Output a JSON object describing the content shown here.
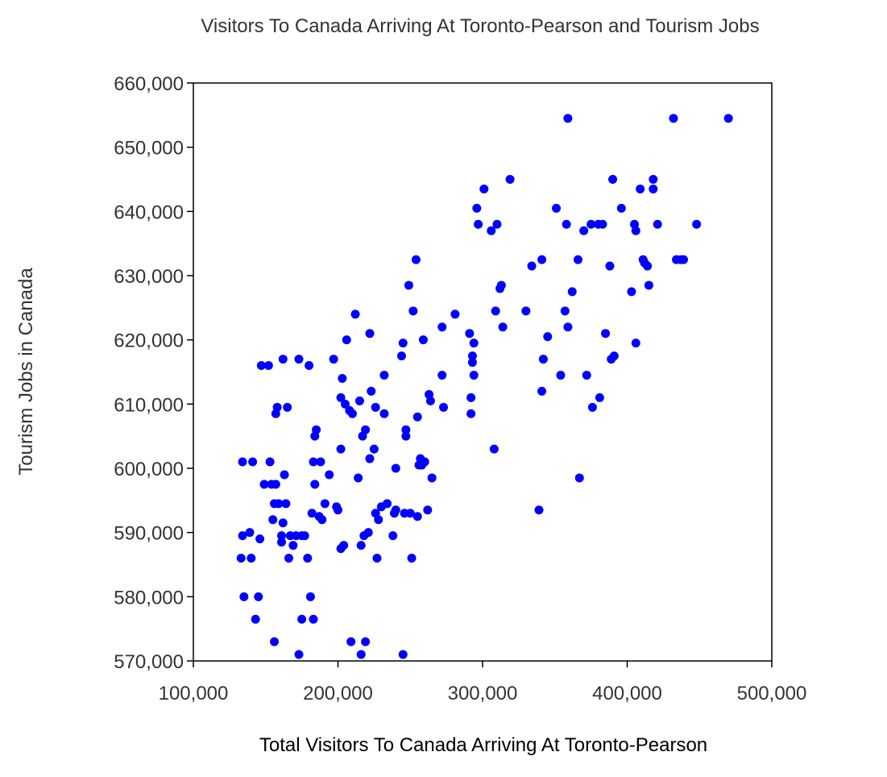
{
  "chart_data": {
    "type": "scatter",
    "title": "Visitors To Canada Arriving At Toronto-Pearson and Tourism Jobs",
    "xlabel": "Total Visitors To Canada Arriving At Toronto-Pearson",
    "ylabel": "Tourism Jobs in Canada",
    "xlim": [
      100000,
      500000
    ],
    "ylim": [
      570000,
      660000
    ],
    "x_ticks": [
      100000,
      200000,
      300000,
      400000,
      500000
    ],
    "x_tick_labels": [
      "100,000",
      "200,000",
      "300,000",
      "400,000",
      "500,000"
    ],
    "y_ticks": [
      570000,
      580000,
      590000,
      600000,
      610000,
      620000,
      630000,
      640000,
      650000,
      660000
    ],
    "y_tick_labels": [
      "570,000",
      "580,000",
      "590,000",
      "600,000",
      "610,000",
      "620,000",
      "630,000",
      "640,000",
      "650,000",
      "660,000"
    ],
    "grid": false,
    "legend": "none",
    "marker_color": "#0000ff",
    "points": [
      [
        134000,
        601000
      ],
      [
        134000,
        589500
      ],
      [
        133000,
        586000
      ],
      [
        135000,
        580000
      ],
      [
        139000,
        590000
      ],
      [
        140000,
        586000
      ],
      [
        141000,
        601000
      ],
      [
        143000,
        576500
      ],
      [
        145000,
        580000
      ],
      [
        146000,
        589000
      ],
      [
        147000,
        616000
      ],
      [
        149000,
        597500
      ],
      [
        152000,
        616000
      ],
      [
        153000,
        601000
      ],
      [
        154000,
        597500
      ],
      [
        155000,
        592000
      ],
      [
        156000,
        594500
      ],
      [
        156000,
        573000
      ],
      [
        157000,
        608500
      ],
      [
        157000,
        597500
      ],
      [
        158000,
        609500
      ],
      [
        159000,
        594500
      ],
      [
        161000,
        589500
      ],
      [
        161000,
        588500
      ],
      [
        162000,
        591500
      ],
      [
        162000,
        617000
      ],
      [
        163000,
        599000
      ],
      [
        164000,
        594500
      ],
      [
        165000,
        609500
      ],
      [
        166000,
        586000
      ],
      [
        167000,
        589500
      ],
      [
        169000,
        588000
      ],
      [
        171000,
        589500
      ],
      [
        173000,
        617000
      ],
      [
        173000,
        571000
      ],
      [
        175000,
        589500
      ],
      [
        175000,
        576500
      ],
      [
        177000,
        589500
      ],
      [
        179000,
        586000
      ],
      [
        180000,
        616000
      ],
      [
        181000,
        580000
      ],
      [
        182000,
        593000
      ],
      [
        183000,
        601000
      ],
      [
        183000,
        576500
      ],
      [
        184000,
        605000
      ],
      [
        184000,
        597500
      ],
      [
        185000,
        606000
      ],
      [
        187000,
        592500
      ],
      [
        188000,
        601000
      ],
      [
        189000,
        592000
      ],
      [
        191000,
        594500
      ],
      [
        194000,
        599000
      ],
      [
        197000,
        617000
      ],
      [
        199000,
        594000
      ],
      [
        200000,
        593500
      ],
      [
        202000,
        603000
      ],
      [
        202000,
        587500
      ],
      [
        202000,
        611000
      ],
      [
        203000,
        614000
      ],
      [
        204000,
        588000
      ],
      [
        205000,
        610000
      ],
      [
        206000,
        620000
      ],
      [
        208000,
        609000
      ],
      [
        209000,
        573000
      ],
      [
        210000,
        608500
      ],
      [
        212000,
        624000
      ],
      [
        214000,
        598500
      ],
      [
        215000,
        610500
      ],
      [
        216000,
        571000
      ],
      [
        216000,
        588000
      ],
      [
        217000,
        605000
      ],
      [
        218000,
        589500
      ],
      [
        219000,
        606000
      ],
      [
        219000,
        573000
      ],
      [
        221000,
        590000
      ],
      [
        222000,
        621000
      ],
      [
        222000,
        601500
      ],
      [
        223000,
        612000
      ],
      [
        225000,
        603000
      ],
      [
        226000,
        609500
      ],
      [
        226000,
        593000
      ],
      [
        227000,
        586000
      ],
      [
        228000,
        592000
      ],
      [
        230000,
        594000
      ],
      [
        232000,
        614500
      ],
      [
        232000,
        608500
      ],
      [
        234000,
        594500
      ],
      [
        238000,
        589500
      ],
      [
        239000,
        593000
      ],
      [
        240000,
        593500
      ],
      [
        240000,
        600000
      ],
      [
        244000,
        617500
      ],
      [
        245000,
        571000
      ],
      [
        245000,
        619500
      ],
      [
        246000,
        593000
      ],
      [
        247000,
        606000
      ],
      [
        247000,
        605000
      ],
      [
        249000,
        628500
      ],
      [
        250000,
        593000
      ],
      [
        251000,
        586000
      ],
      [
        252000,
        624500
      ],
      [
        254000,
        632500
      ],
      [
        255000,
        592500
      ],
      [
        255000,
        608000
      ],
      [
        256000,
        600500
      ],
      [
        257000,
        601500
      ],
      [
        258000,
        600500
      ],
      [
        259000,
        620000
      ],
      [
        260000,
        601000
      ],
      [
        262000,
        593500
      ],
      [
        263000,
        611500
      ],
      [
        264000,
        610500
      ],
      [
        265000,
        598500
      ],
      [
        272000,
        614500
      ],
      [
        272000,
        622000
      ],
      [
        273000,
        609500
      ],
      [
        281000,
        624000
      ],
      [
        291000,
        621000
      ],
      [
        292000,
        611000
      ],
      [
        292000,
        608500
      ],
      [
        293000,
        617500
      ],
      [
        293000,
        616500
      ],
      [
        294000,
        614500
      ],
      [
        294000,
        619500
      ],
      [
        296000,
        640500
      ],
      [
        297000,
        638000
      ],
      [
        301000,
        643500
      ],
      [
        306000,
        637000
      ],
      [
        308000,
        603000
      ],
      [
        309000,
        624500
      ],
      [
        310000,
        638000
      ],
      [
        312000,
        628000
      ],
      [
        313000,
        628500
      ],
      [
        314000,
        622000
      ],
      [
        319000,
        645000
      ],
      [
        330000,
        624500
      ],
      [
        334000,
        631500
      ],
      [
        339000,
        593500
      ],
      [
        341000,
        632500
      ],
      [
        341000,
        612000
      ],
      [
        342000,
        617000
      ],
      [
        345000,
        620500
      ],
      [
        351000,
        640500
      ],
      [
        354000,
        614500
      ],
      [
        357000,
        624500
      ],
      [
        358000,
        638000
      ],
      [
        359000,
        654500
      ],
      [
        359000,
        622000
      ],
      [
        362000,
        627500
      ],
      [
        366000,
        632500
      ],
      [
        367000,
        598500
      ],
      [
        370000,
        637000
      ],
      [
        372000,
        614500
      ],
      [
        375000,
        638000
      ],
      [
        376000,
        609500
      ],
      [
        380000,
        638000
      ],
      [
        381000,
        611000
      ],
      [
        383000,
        638000
      ],
      [
        385000,
        621000
      ],
      [
        388000,
        631500
      ],
      [
        389000,
        617000
      ],
      [
        390000,
        645000
      ],
      [
        391000,
        617500
      ],
      [
        396000,
        640500
      ],
      [
        403000,
        627500
      ],
      [
        405000,
        638000
      ],
      [
        406000,
        637000
      ],
      [
        406000,
        619500
      ],
      [
        409000,
        643500
      ],
      [
        411000,
        632500
      ],
      [
        412000,
        632000
      ],
      [
        414000,
        631500
      ],
      [
        415000,
        628500
      ],
      [
        418000,
        645000
      ],
      [
        418000,
        643500
      ],
      [
        421000,
        638000
      ],
      [
        432000,
        654500
      ],
      [
        434000,
        632500
      ],
      [
        437000,
        632500
      ],
      [
        439000,
        632500
      ],
      [
        448000,
        638000
      ],
      [
        470000,
        654500
      ]
    ]
  }
}
